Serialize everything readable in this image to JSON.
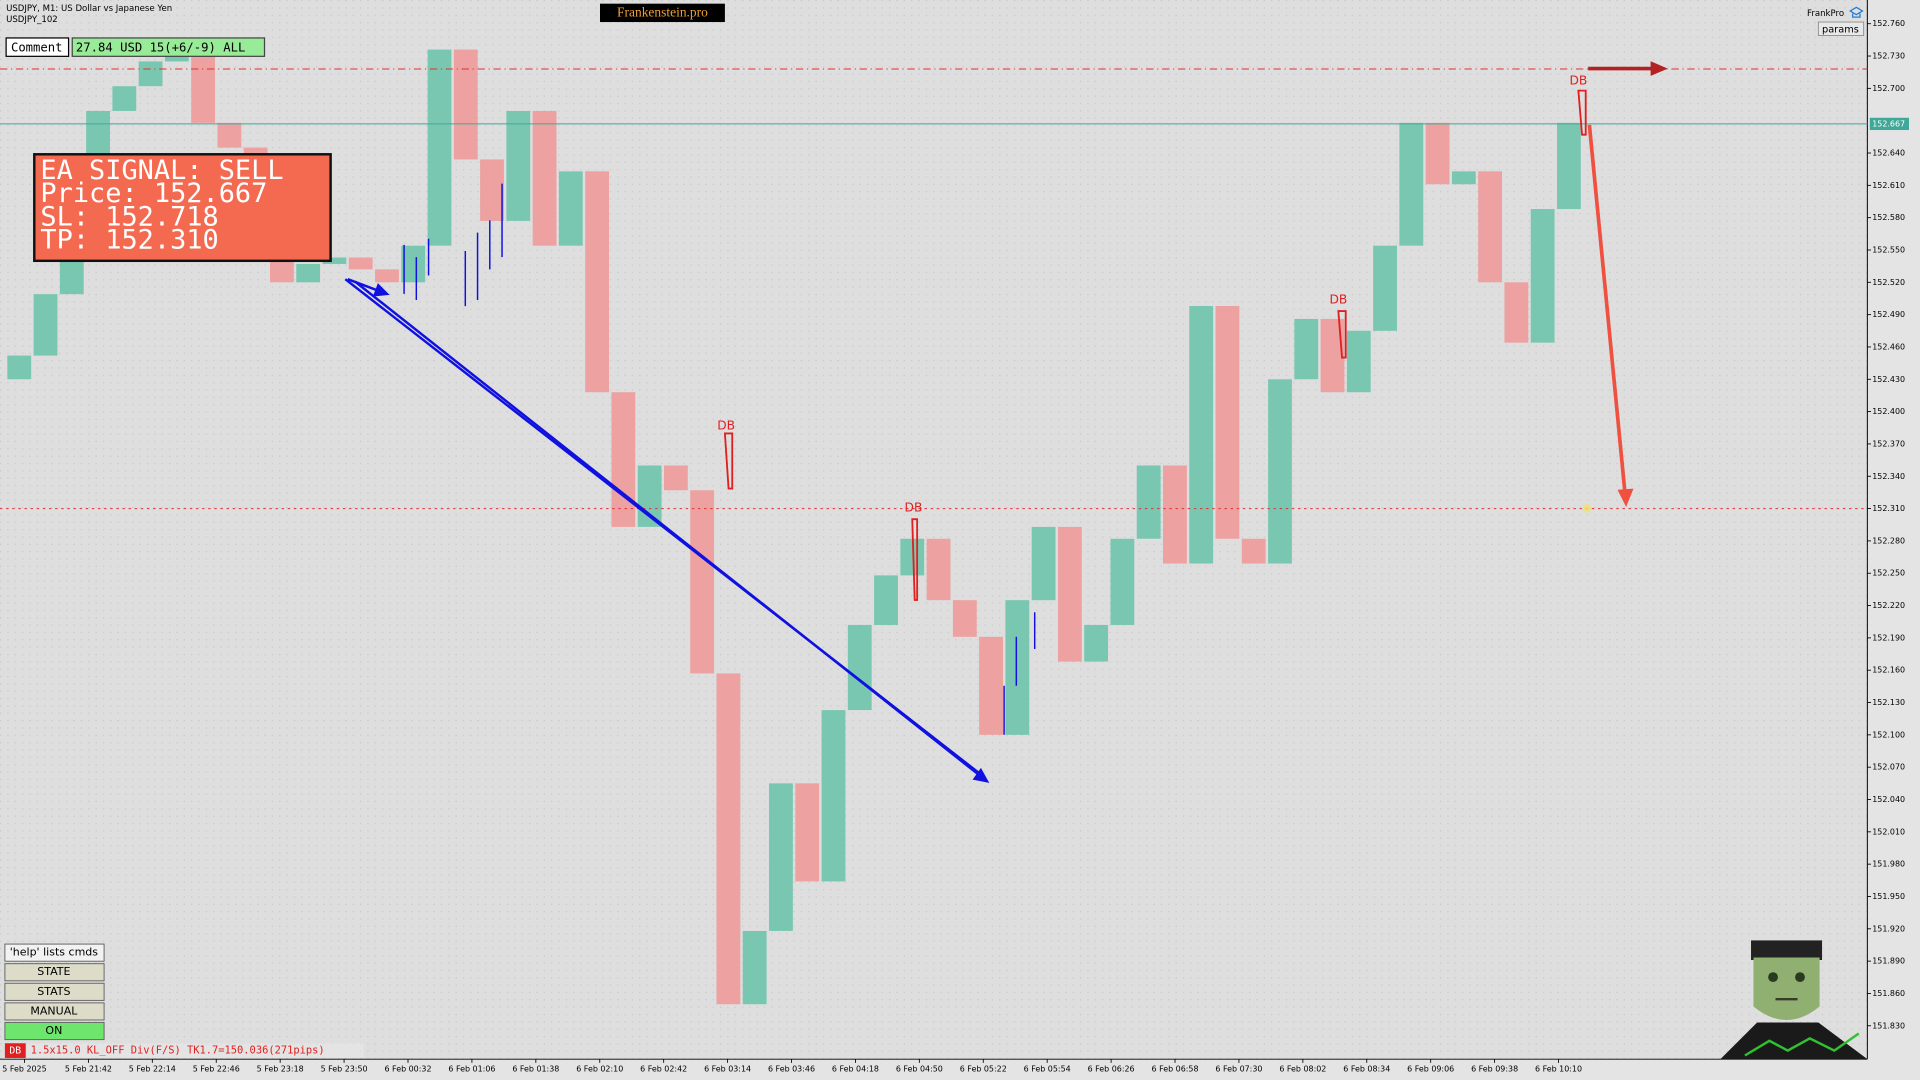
{
  "header": {
    "symbol_line": "USDJPY, M1:  US Dollar vs Japanese Yen",
    "chart_id": "USDJPY_102",
    "brand": "Frankenstein.pro",
    "profile": "FrankPro",
    "params_button": "params"
  },
  "comment": {
    "label": "Comment",
    "value": "27.84 USD 15(+6/-9) ALL"
  },
  "signal": {
    "lines": [
      "EA SIGNAL: SELL",
      "Price: 152.667",
      "SL:    152.718",
      "TP:    152.310"
    ]
  },
  "levels": {
    "sl": 152.718,
    "price": 152.667,
    "price_label": "152.667",
    "tp": 152.31
  },
  "markers": [
    "DB",
    "DB",
    "DB",
    "DB"
  ],
  "buttons": [
    "'help' lists cmds",
    "STATE",
    "STATS",
    "MANUAL",
    "ON"
  ],
  "status": {
    "tag": "DB",
    "text": "1.5x15.0 KL_OFF Div(F/S) TK1.7=150.036(271pips)"
  },
  "price_axis": {
    "ylim": [
      151.799,
      152.782
    ],
    "ticks": [
      {
        "value": 152.76,
        "label": "152.760"
      },
      {
        "value": 152.73,
        "label": "152.730"
      },
      {
        "value": 152.7,
        "label": "152.700"
      },
      {
        "value": 152.64,
        "label": "152.640"
      },
      {
        "value": 152.61,
        "label": "152.610"
      },
      {
        "value": 152.58,
        "label": "152.580"
      },
      {
        "value": 152.55,
        "label": "152.550"
      },
      {
        "value": 152.52,
        "label": "152.520"
      },
      {
        "value": 152.49,
        "label": "152.490"
      },
      {
        "value": 152.46,
        "label": "152.460"
      },
      {
        "value": 152.43,
        "label": "152.430"
      },
      {
        "value": 152.4,
        "label": "152.400"
      },
      {
        "value": 152.37,
        "label": "152.370"
      },
      {
        "value": 152.34,
        "label": "152.340"
      },
      {
        "value": 152.31,
        "label": "152.310"
      },
      {
        "value": 152.28,
        "label": "152.280"
      },
      {
        "value": 152.25,
        "label": "152.250"
      },
      {
        "value": 152.22,
        "label": "152.220"
      },
      {
        "value": 152.19,
        "label": "152.190"
      },
      {
        "value": 152.16,
        "label": "152.160"
      },
      {
        "value": 152.13,
        "label": "152.130"
      },
      {
        "value": 152.1,
        "label": "152.100"
      },
      {
        "value": 152.07,
        "label": "152.070"
      },
      {
        "value": 152.04,
        "label": "152.040"
      },
      {
        "value": 152.01,
        "label": "152.010"
      },
      {
        "value": 151.98,
        "label": "151.980"
      },
      {
        "value": 151.95,
        "label": "151.950"
      },
      {
        "value": 151.92,
        "label": "151.920"
      },
      {
        "value": 151.89,
        "label": "151.890"
      },
      {
        "value": 151.86,
        "label": "151.860"
      },
      {
        "value": 151.83,
        "label": "151.830"
      }
    ]
  },
  "time_axis": {
    "labels": [
      "5 Feb 2025",
      "5 Feb 21:42",
      "5 Feb 22:14",
      "5 Feb 22:46",
      "5 Feb 23:18",
      "5 Feb 23:50",
      "6 Feb 00:32",
      "6 Feb 01:06",
      "6 Feb 01:38",
      "6 Feb 02:10",
      "6 Feb 02:42",
      "6 Feb 03:14",
      "6 Feb 03:46",
      "6 Feb 04:18",
      "6 Feb 04:50",
      "6 Feb 05:22",
      "6 Feb 05:54",
      "6 Feb 06:26",
      "6 Feb 06:58",
      "6 Feb 07:30",
      "6 Feb 08:02",
      "6 Feb 08:34",
      "6 Feb 09:06",
      "6 Feb 09:38",
      "6 Feb 10:10"
    ]
  },
  "price_path": {
    "values": [
      152.43,
      152.452,
      152.509,
      152.554,
      152.679,
      152.702,
      152.725,
      152.736,
      152.668,
      152.645,
      152.623,
      152.52,
      152.537,
      152.543,
      152.532,
      152.52,
      152.554,
      152.736,
      152.634,
      152.577,
      152.679,
      152.554,
      152.623,
      152.418,
      152.293,
      152.35,
      152.327,
      152.157,
      151.85,
      151.918,
      152.055,
      151.964,
      152.123,
      152.202,
      152.248,
      152.282,
      152.225,
      152.191,
      152.1,
      152.225,
      152.293,
      152.168,
      152.202,
      152.282,
      152.35,
      152.259,
      152.498,
      152.282,
      152.259,
      152.43,
      152.486,
      152.418,
      152.475,
      152.554,
      152.668,
      152.611,
      152.623,
      152.52,
      152.464,
      152.588,
      152.668
    ]
  }
}
